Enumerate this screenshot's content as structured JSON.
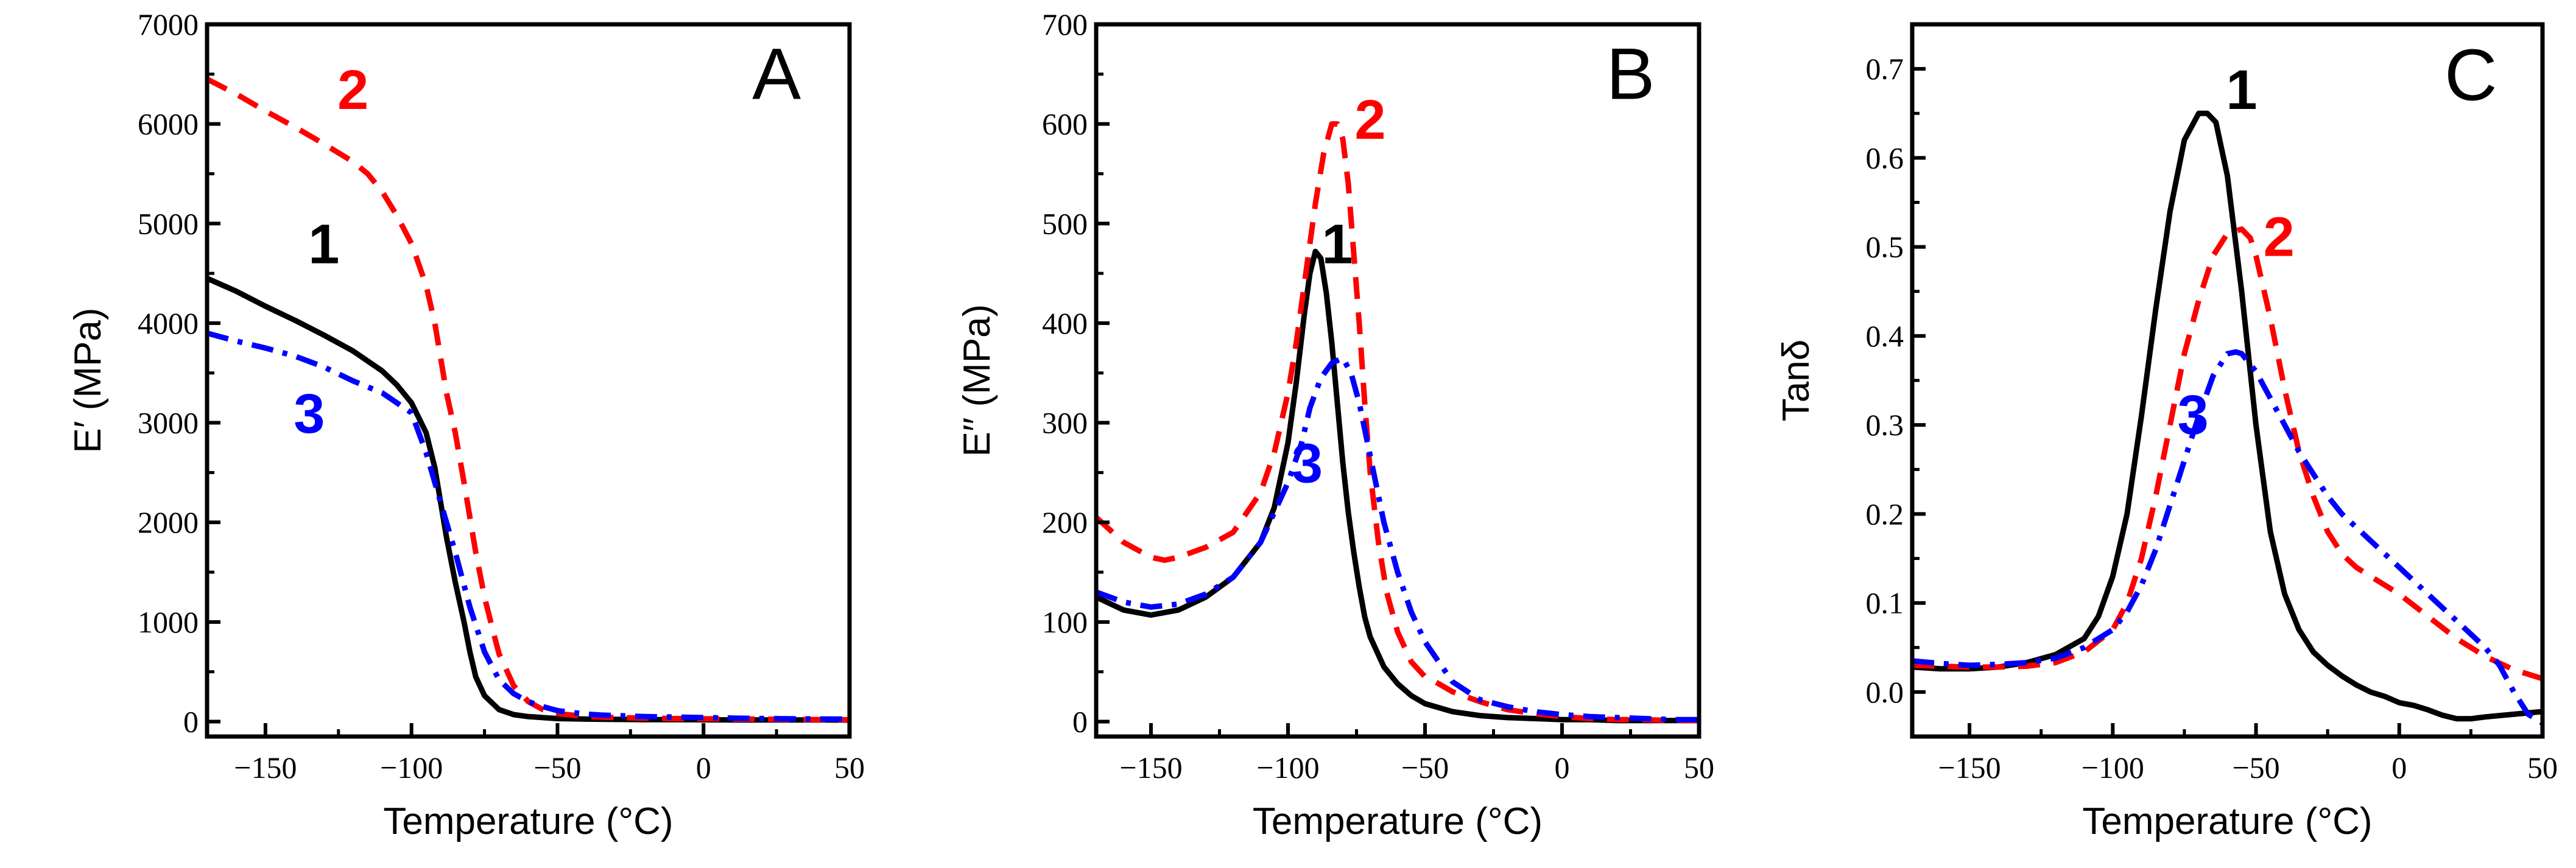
{
  "figure": {
    "type": "multi-panel line chart"
  },
  "chart_data": [
    {
      "type": "line",
      "panel": "A",
      "title": "",
      "xlabel": "Temperature (°C)",
      "ylabel": "E′ (MPa)",
      "xlim": [
        -170,
        50
      ],
      "ylim": [
        -150,
        7000
      ],
      "xticks": [
        -150,
        -100,
        -50,
        0,
        50
      ],
      "yticks": [
        0,
        1000,
        2000,
        3000,
        4000,
        5000,
        6000,
        7000
      ],
      "series": [
        {
          "name": "1",
          "color": "#000000",
          "style": "solid",
          "x": [
            -170,
            -160,
            -150,
            -140,
            -130,
            -120,
            -110,
            -105,
            -100,
            -95,
            -92,
            -90,
            -88,
            -85,
            -82,
            -80,
            -78,
            -75,
            -70,
            -65,
            -60,
            -50,
            -40,
            -30,
            -20,
            -10,
            0,
            10,
            20,
            30,
            40,
            50
          ],
          "y": [
            4450,
            4320,
            4170,
            4030,
            3880,
            3720,
            3520,
            3380,
            3200,
            2900,
            2550,
            2200,
            1850,
            1400,
            1000,
            700,
            450,
            260,
            120,
            70,
            50,
            30,
            25,
            22,
            20,
            20,
            18,
            17,
            17,
            16,
            16,
            15
          ]
        },
        {
          "name": "2",
          "color": "#ff0000",
          "style": "dashed",
          "x": [
            -170,
            -160,
            -150,
            -140,
            -130,
            -120,
            -115,
            -110,
            -105,
            -100,
            -95,
            -92,
            -90,
            -88,
            -85,
            -82,
            -80,
            -78,
            -75,
            -72,
            -70,
            -65,
            -60,
            -55,
            -50,
            -40,
            -30,
            -20,
            -10,
            0,
            10,
            20,
            30,
            40,
            50
          ],
          "y": [
            6450,
            6300,
            6130,
            5970,
            5800,
            5620,
            5500,
            5320,
            5080,
            4800,
            4380,
            4000,
            3650,
            3300,
            2900,
            2400,
            2050,
            1700,
            1250,
            900,
            680,
            360,
            200,
            120,
            80,
            50,
            40,
            35,
            30,
            28,
            26,
            24,
            22,
            20,
            18
          ]
        },
        {
          "name": "3",
          "color": "#0000ff",
          "style": "dashdot",
          "x": [
            -170,
            -160,
            -150,
            -140,
            -130,
            -120,
            -110,
            -100,
            -95,
            -90,
            -85,
            -80,
            -75,
            -70,
            -65,
            -60,
            -55,
            -50,
            -45,
            -40,
            -35,
            -30,
            -20,
            -10,
            0,
            10,
            20,
            30,
            40,
            50
          ],
          "y": [
            3900,
            3820,
            3750,
            3670,
            3560,
            3420,
            3300,
            3100,
            2700,
            2200,
            1700,
            1150,
            700,
            420,
            280,
            200,
            150,
            110,
            90,
            75,
            65,
            60,
            50,
            45,
            40,
            35,
            30,
            28,
            26,
            25
          ]
        }
      ],
      "annotations": [
        {
          "text": "A",
          "x": 25,
          "y": 6250
        },
        {
          "text": "2",
          "x": -120,
          "y": 6150
        },
        {
          "text": "1",
          "x": -130,
          "y": 4600
        },
        {
          "text": "3",
          "x": -135,
          "y": 2900
        }
      ]
    },
    {
      "type": "line",
      "panel": "B",
      "title": "",
      "xlabel": "Temperature (°C)",
      "ylabel": "E′′ (MPa)",
      "xlim": [
        -170,
        50
      ],
      "ylim": [
        -15,
        700
      ],
      "xticks": [
        -150,
        -100,
        -50,
        0,
        50
      ],
      "yticks": [
        0,
        100,
        200,
        300,
        400,
        500,
        600,
        700
      ],
      "series": [
        {
          "name": "1",
          "color": "#000000",
          "style": "solid",
          "x": [
            -170,
            -160,
            -150,
            -140,
            -130,
            -120,
            -110,
            -105,
            -100,
            -97,
            -94,
            -92,
            -90,
            -88,
            -86,
            -84,
            -82,
            -80,
            -78,
            -76,
            -74,
            -72,
            -70,
            -65,
            -60,
            -55,
            -50,
            -40,
            -30,
            -20,
            -10,
            0,
            10,
            20,
            30,
            40,
            50
          ],
          "y": [
            125,
            112,
            107,
            112,
            125,
            145,
            180,
            215,
            280,
            340,
            410,
            450,
            472,
            465,
            430,
            380,
            320,
            260,
            210,
            170,
            135,
            105,
            85,
            55,
            38,
            26,
            18,
            10,
            6,
            4,
            3,
            2,
            2,
            1,
            1,
            1,
            1
          ]
        },
        {
          "name": "2",
          "color": "#ff0000",
          "style": "dashed",
          "x": [
            -170,
            -160,
            -150,
            -145,
            -140,
            -130,
            -120,
            -110,
            -105,
            -100,
            -97,
            -94,
            -92,
            -90,
            -87,
            -84,
            -82,
            -80,
            -78,
            -76,
            -74,
            -72,
            -70,
            -67,
            -64,
            -60,
            -55,
            -50,
            -45,
            -40,
            -30,
            -20,
            -10,
            0,
            10,
            20,
            30,
            40,
            50
          ],
          "y": [
            205,
            180,
            165,
            162,
            165,
            175,
            190,
            230,
            270,
            330,
            380,
            440,
            480,
            520,
            570,
            600,
            600,
            585,
            540,
            470,
            400,
            320,
            250,
            180,
            130,
            90,
            60,
            45,
            38,
            30,
            20,
            12,
            8,
            5,
            3,
            2,
            2,
            1,
            1
          ]
        },
        {
          "name": "3",
          "color": "#0000ff",
          "style": "dashdot",
          "x": [
            -170,
            -160,
            -150,
            -140,
            -130,
            -120,
            -110,
            -100,
            -95,
            -92,
            -88,
            -84,
            -80,
            -77,
            -74,
            -71,
            -68,
            -65,
            -60,
            -55,
            -50,
            -40,
            -30,
            -20,
            -10,
            0,
            10,
            20,
            30,
            40,
            50
          ],
          "y": [
            130,
            120,
            115,
            118,
            128,
            145,
            180,
            240,
            280,
            315,
            345,
            360,
            365,
            350,
            320,
            280,
            240,
            200,
            150,
            110,
            80,
            40,
            22,
            15,
            10,
            7,
            5,
            4,
            3,
            2,
            2
          ]
        }
      ],
      "annotations": [
        {
          "text": "B",
          "x": 25,
          "y": 625
        },
        {
          "text": "2",
          "x": -70,
          "y": 585
        },
        {
          "text": "1",
          "x": -82,
          "y": 460
        },
        {
          "text": "3",
          "x": -93,
          "y": 240
        }
      ]
    },
    {
      "type": "line",
      "panel": "C",
      "title": "",
      "xlabel": "Temperature (°C)",
      "ylabel": "Tanδ",
      "xlim": [
        -170,
        50
      ],
      "ylim": [
        -0.05,
        0.75
      ],
      "xticks": [
        -150,
        -100,
        -50,
        0,
        50
      ],
      "yticks": [
        0.0,
        0.1,
        0.2,
        0.3,
        0.4,
        0.5,
        0.6,
        0.7
      ],
      "series": [
        {
          "name": "1",
          "color": "#000000",
          "style": "solid",
          "x": [
            -170,
            -160,
            -150,
            -140,
            -130,
            -120,
            -110,
            -105,
            -100,
            -95,
            -90,
            -85,
            -80,
            -75,
            -70,
            -67,
            -64,
            -60,
            -55,
            -50,
            -45,
            -40,
            -35,
            -30,
            -25,
            -20,
            -15,
            -10,
            -5,
            0,
            5,
            10,
            15,
            20,
            25,
            30,
            40,
            50
          ],
          "y": [
            0.028,
            0.026,
            0.026,
            0.028,
            0.033,
            0.042,
            0.06,
            0.085,
            0.13,
            0.2,
            0.31,
            0.43,
            0.54,
            0.62,
            0.65,
            0.65,
            0.64,
            0.58,
            0.45,
            0.3,
            0.18,
            0.11,
            0.07,
            0.045,
            0.03,
            0.018,
            0.008,
            0.0,
            -0.005,
            -0.012,
            -0.015,
            -0.02,
            -0.026,
            -0.03,
            -0.03,
            -0.028,
            -0.025,
            -0.022
          ]
        },
        {
          "name": "2",
          "color": "#ff0000",
          "style": "dashed",
          "x": [
            -170,
            -160,
            -150,
            -140,
            -130,
            -120,
            -110,
            -100,
            -95,
            -90,
            -85,
            -80,
            -75,
            -70,
            -65,
            -60,
            -55,
            -52,
            -50,
            -45,
            -40,
            -35,
            -30,
            -25,
            -20,
            -15,
            -10,
            -5,
            0,
            10,
            20,
            30,
            40,
            50
          ],
          "y": [
            0.03,
            0.029,
            0.028,
            0.028,
            0.029,
            0.033,
            0.045,
            0.07,
            0.1,
            0.15,
            0.22,
            0.3,
            0.38,
            0.44,
            0.49,
            0.515,
            0.52,
            0.51,
            0.49,
            0.42,
            0.34,
            0.27,
            0.22,
            0.18,
            0.155,
            0.14,
            0.13,
            0.12,
            0.11,
            0.085,
            0.06,
            0.04,
            0.025,
            0.015
          ]
        },
        {
          "name": "3",
          "color": "#0000ff",
          "style": "dashdot",
          "x": [
            -170,
            -160,
            -150,
            -140,
            -130,
            -120,
            -110,
            -100,
            -95,
            -90,
            -85,
            -80,
            -75,
            -70,
            -65,
            -60,
            -57,
            -55,
            -50,
            -45,
            -40,
            -35,
            -30,
            -25,
            -20,
            -10,
            0,
            10,
            20,
            30,
            35,
            40,
            45,
            50
          ],
          "y": [
            0.035,
            0.032,
            0.03,
            0.031,
            0.033,
            0.038,
            0.05,
            0.07,
            0.09,
            0.12,
            0.16,
            0.21,
            0.26,
            0.31,
            0.355,
            0.38,
            0.382,
            0.38,
            0.36,
            0.33,
            0.3,
            0.27,
            0.245,
            0.22,
            0.2,
            0.17,
            0.14,
            0.11,
            0.08,
            0.05,
            0.03,
            0.0,
            -0.025,
            -0.035
          ]
        }
      ],
      "annotations": [
        {
          "text": "C",
          "x": 25,
          "y": 0.665
        },
        {
          "text": "1",
          "x": -55,
          "y": 0.655
        },
        {
          "text": "2",
          "x": -42,
          "y": 0.49
        },
        {
          "text": "3",
          "x": -72,
          "y": 0.29
        }
      ]
    }
  ]
}
